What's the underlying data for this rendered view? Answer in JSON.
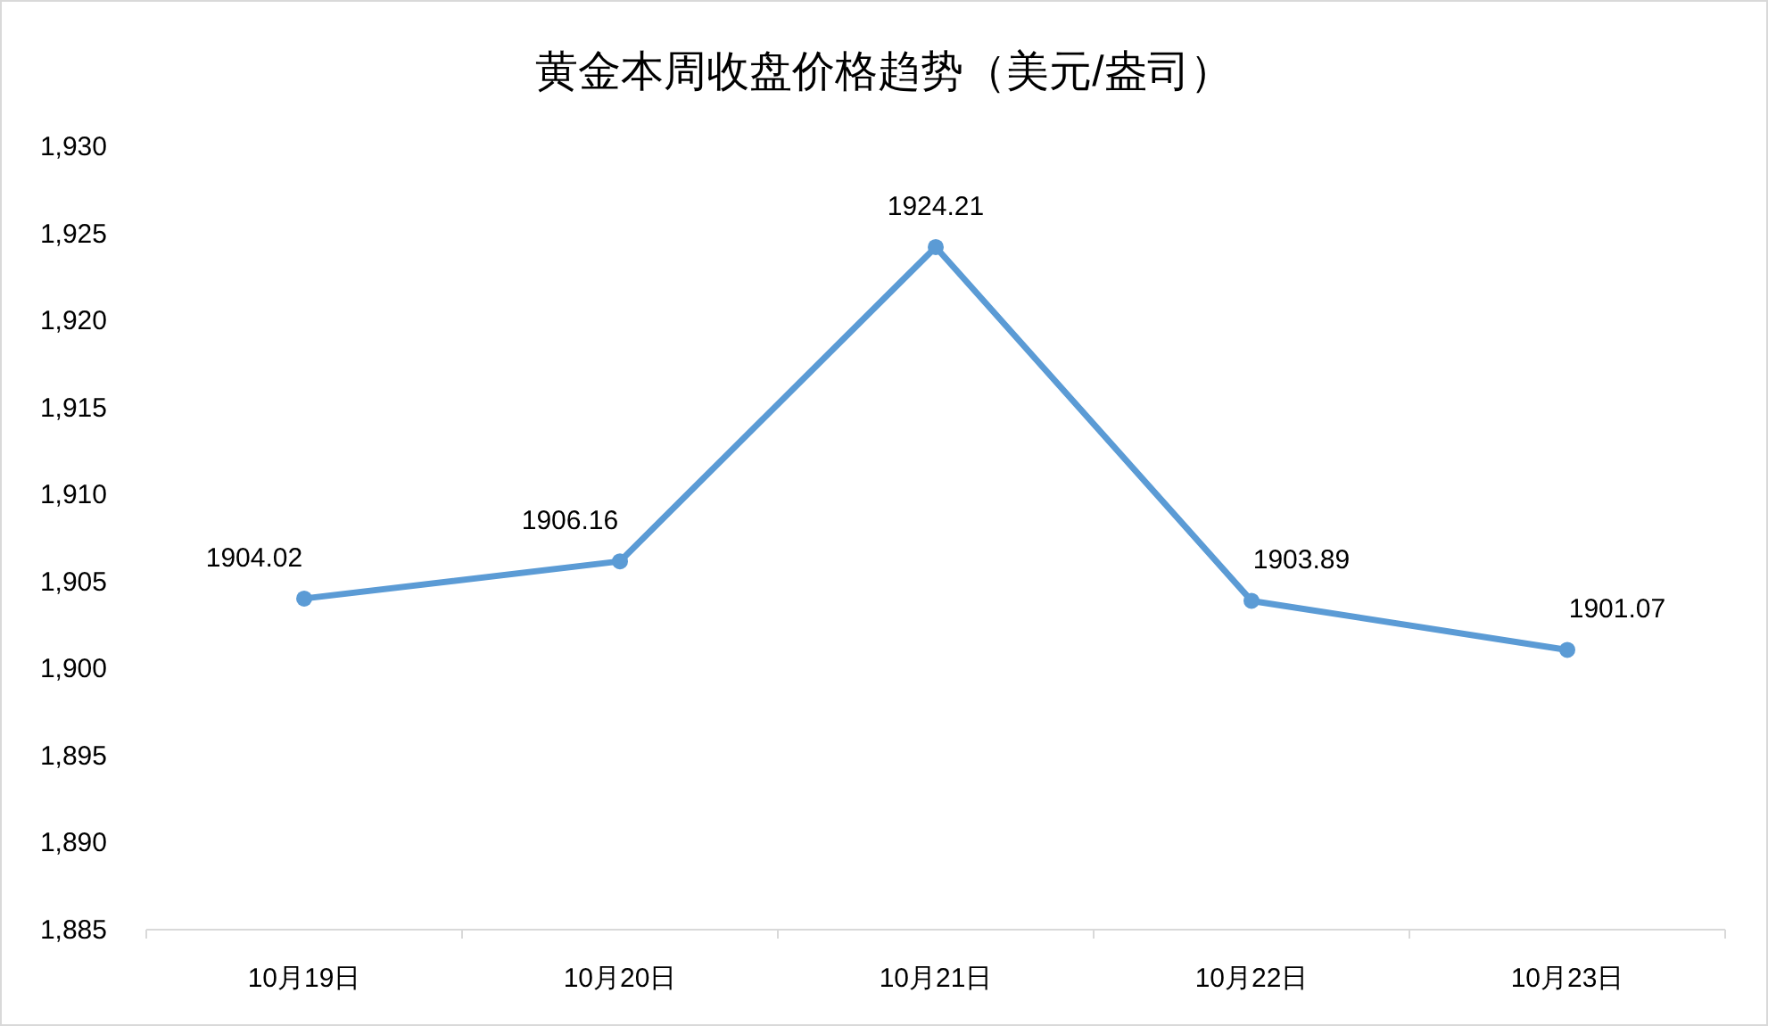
{
  "chart_data": {
    "type": "line",
    "title": "黄金本周收盘价格趋势（美元/盎司）",
    "categories": [
      "10月19日",
      "10月20日",
      "10月21日",
      "10月22日",
      "10月23日"
    ],
    "series": [
      {
        "color": "#5b9bd5",
        "values": [
          1904.02,
          1906.16,
          1924.21,
          1903.89,
          1901.07
        ]
      }
    ],
    "ylim": [
      1885,
      1930
    ],
    "yticks": [
      {
        "value": 1885,
        "label": "1,885"
      },
      {
        "value": 1890,
        "label": "1,890"
      },
      {
        "value": 1895,
        "label": "1,895"
      },
      {
        "value": 1900,
        "label": "1,900"
      },
      {
        "value": 1905,
        "label": "1,905"
      },
      {
        "value": 1910,
        "label": "1,910"
      },
      {
        "value": 1915,
        "label": "1,915"
      },
      {
        "value": 1920,
        "label": "1,920"
      },
      {
        "value": 1925,
        "label": "1,925"
      },
      {
        "value": 1930,
        "label": "1,930"
      }
    ],
    "marker": "circle",
    "line_style": "solid",
    "data_labels": true,
    "grid": false
  }
}
